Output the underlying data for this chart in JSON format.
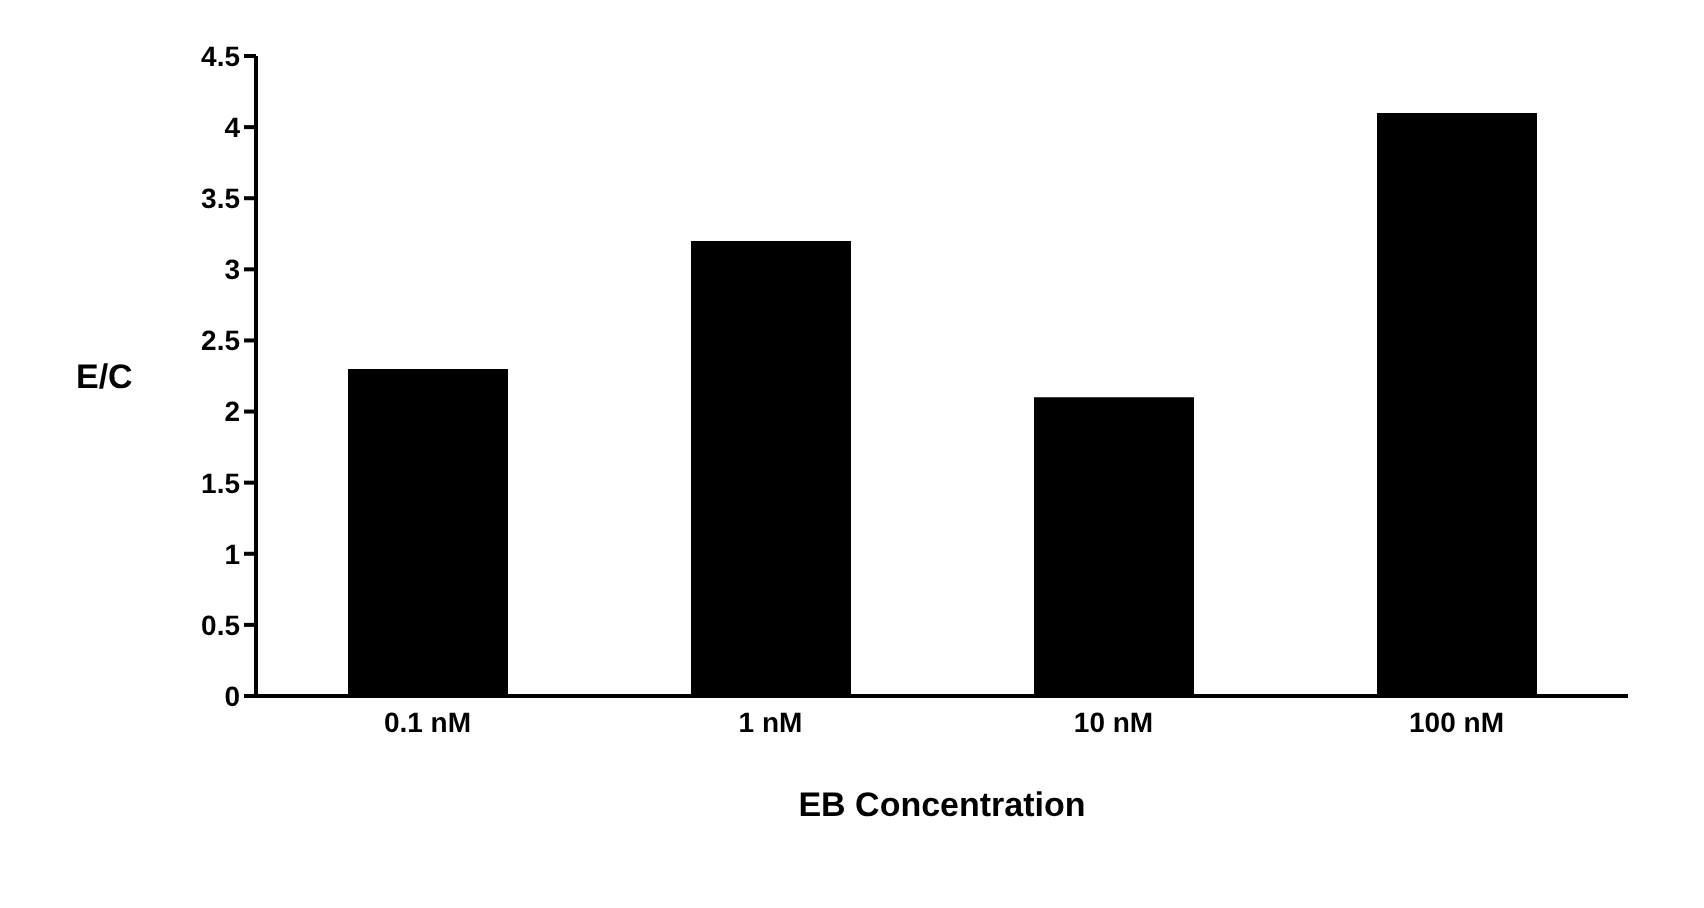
{
  "chart_data": {
    "type": "bar",
    "categories": [
      "0.1 nM",
      "1 nM",
      "10 nM",
      "100 nM"
    ],
    "values": [
      2.3,
      3.2,
      2.1,
      4.1
    ],
    "color": "#000000",
    "xlabel": "EB Concentration",
    "ylabel": "E/C",
    "ylim": [
      0,
      4.5
    ],
    "yticks": [
      0,
      0.5,
      1,
      1.5,
      2,
      2.5,
      3,
      3.5,
      4,
      4.5
    ],
    "grid": false,
    "legend": false
  }
}
